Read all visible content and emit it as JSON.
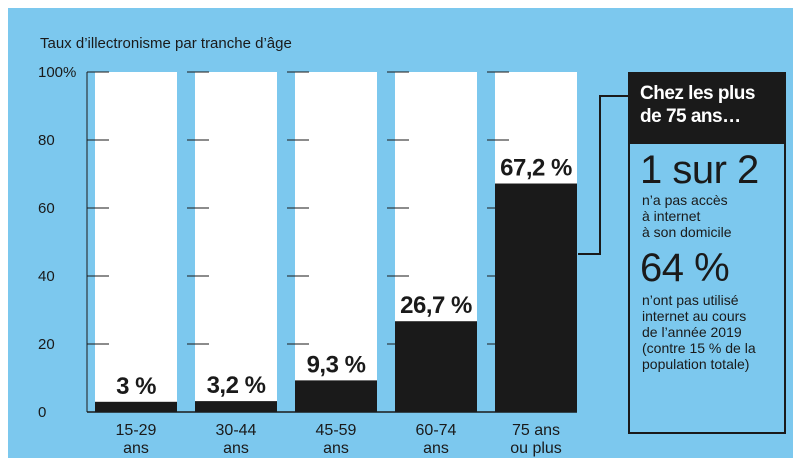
{
  "chart_data": {
    "type": "bar",
    "ylabel": "Taux d’illectronisme par tranche d’âge",
    "ylim": [
      0,
      100
    ],
    "yticks": [
      "0",
      "20",
      "40",
      "60",
      "80",
      "100%"
    ],
    "ytick_values": [
      0,
      20,
      40,
      60,
      80,
      100
    ],
    "categories": [
      [
        "15-29",
        "ans"
      ],
      [
        "30-44",
        "ans"
      ],
      [
        "45-59",
        "ans"
      ],
      [
        "60-74",
        "ans"
      ],
      [
        "75 ans",
        "ou plus"
      ]
    ],
    "values": [
      3,
      3.2,
      9.3,
      26.7,
      67.2
    ],
    "data_labels": [
      "3 %",
      "3,2 %",
      "9,3 %",
      "26,7 %",
      "67,2 %"
    ],
    "colors": {
      "background": "#7cc8ee",
      "bar": "#1a1a1a",
      "track": "#ffffff",
      "text": "#1a1a1a"
    }
  },
  "callout": {
    "header": "Chez les plus de 75 ans…",
    "stat1_big": "1 sur 2",
    "stat1_text": "n’a pas accès\nà internet\nà son domicile",
    "stat2_big": "64 %",
    "stat2_text": "n’ont pas utilisé\ninternet au cours\nde l’année 2019\n(contre 15 % de la\npopulation totale)"
  }
}
